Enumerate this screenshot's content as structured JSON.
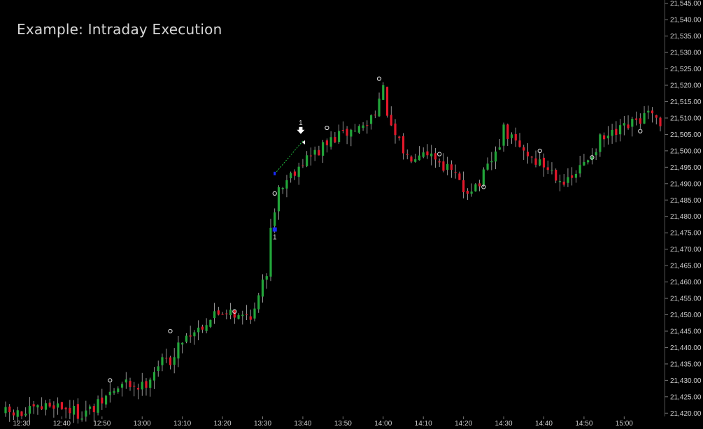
{
  "chart_data": {
    "type": "candlestick",
    "title": "Example: Intraday Execution",
    "subtitle": "",
    "xlabel": "",
    "ylabel": "",
    "x_ticks": [
      "12:30",
      "12:40",
      "12:50",
      "13:00",
      "13:10",
      "13:20",
      "13:30",
      "13:40",
      "13:50",
      "14:00",
      "14:10",
      "14:20",
      "14:30",
      "14:40",
      "14:50",
      "15:00"
    ],
    "y_ticks": [
      "21,420.00",
      "21,425.00",
      "21,430.00",
      "21,435.00",
      "21,440.00",
      "21,445.00",
      "21,450.00",
      "21,455.00",
      "21,460.00",
      "21,465.00",
      "21,470.00",
      "21,475.00",
      "21,480.00",
      "21,485.00",
      "21,490.00",
      "21,495.00",
      "21,500.00",
      "21,505.00",
      "21,510.00",
      "21,515.00",
      "21,520.00",
      "21,525.00",
      "21,530.00",
      "21,535.00",
      "21,540.00",
      "21,545.00"
    ],
    "ylim": [
      21419,
      21546
    ],
    "xlim_minutes": [
      "12:26",
      "15:09"
    ],
    "grid": false,
    "legend": "none",
    "colors": {
      "up": "#22a63a",
      "down": "#e0182a",
      "wick": "#b8b8b8",
      "marker": "#dcdcdc",
      "entry": "#1a2cff",
      "exit": "#ffffff",
      "trade_line": "#22c040"
    },
    "candles_close_path": [
      [
        "12:26",
        21420
      ],
      [
        "12:30",
        21419.5
      ],
      [
        "12:34",
        21421
      ],
      [
        "12:38",
        21423
      ],
      [
        "12:44",
        21420
      ],
      [
        "12:48",
        21421
      ],
      [
        "12:52",
        21426
      ],
      [
        "12:56",
        21429
      ],
      [
        "13:00",
        21428
      ],
      [
        "13:04",
        21435
      ],
      [
        "13:08",
        21437
      ],
      [
        "13:10",
        21443
      ],
      [
        "13:14",
        21446
      ],
      [
        "13:18",
        21450
      ],
      [
        "13:22",
        21452
      ],
      [
        "13:24",
        21449
      ],
      [
        "13:28",
        21451
      ],
      [
        "13:31",
        21463
      ],
      [
        "13:32",
        21478
      ],
      [
        "13:34",
        21488
      ],
      [
        "13:37",
        21493
      ],
      [
        "13:40",
        21497
      ],
      [
        "13:44",
        21500
      ],
      [
        "13:48",
        21504
      ],
      [
        "13:52",
        21506
      ],
      [
        "13:56",
        21508
      ],
      [
        "14:00",
        21518
      ],
      [
        "14:02",
        21506
      ],
      [
        "14:06",
        21498
      ],
      [
        "14:10",
        21501
      ],
      [
        "14:14",
        21497
      ],
      [
        "14:18",
        21492
      ],
      [
        "14:20",
        21488
      ],
      [
        "14:24",
        21490
      ],
      [
        "14:28",
        21499
      ],
      [
        "14:30",
        21506
      ],
      [
        "14:34",
        21501
      ],
      [
        "14:38",
        21497
      ],
      [
        "14:42",
        21494
      ],
      [
        "14:46",
        21490
      ],
      [
        "14:50",
        21496
      ],
      [
        "14:54",
        21503
      ],
      [
        "14:58",
        21505
      ],
      [
        "15:02",
        21508
      ],
      [
        "15:06",
        21511
      ],
      [
        "15:09",
        21507
      ]
    ],
    "trade": {
      "entry": {
        "label": "1",
        "time": "13:33",
        "price": 21490
      },
      "exit": {
        "label": "1",
        "time": "13:40",
        "price": 21503
      }
    },
    "pivot_markers": [
      [
        "12:52",
        21430
      ],
      [
        "13:07",
        21445
      ],
      [
        "13:23",
        21451
      ],
      [
        "13:33",
        21487
      ],
      [
        "13:46",
        21507
      ],
      [
        "13:59",
        21522
      ],
      [
        "14:14",
        21499
      ],
      [
        "14:25",
        21489
      ],
      [
        "14:39",
        21500
      ],
      [
        "14:52",
        21498
      ],
      [
        "15:04",
        21506
      ]
    ]
  }
}
